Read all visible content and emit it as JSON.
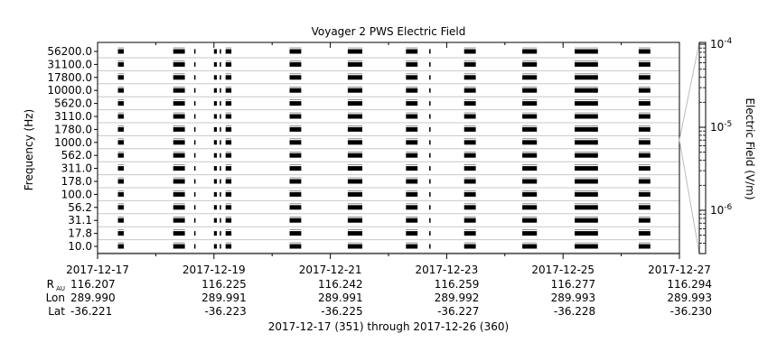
{
  "chart_data": {
    "type": "heatmap",
    "title": "Voyager 2 PWS Electric Field",
    "xlabel": "2017-12-17 (351) through 2017-12-26 (360)",
    "ylabel": "Frequency (Hz)",
    "colorbar_label": "Electric Field (V/m)",
    "colorbar_scale": "log",
    "colorbar_ticks": [
      {
        "base": "10",
        "exp": "-4"
      },
      {
        "base": "10",
        "exp": "-5"
      },
      {
        "base": "10",
        "exp": "-6"
      }
    ],
    "x_tick_labels": [
      "2017-12-17",
      "2017-12-19",
      "2017-12-21",
      "2017-12-23",
      "2017-12-25",
      "2017-12-27"
    ],
    "xlim": [
      "2017-12-17",
      "2017-12-27"
    ],
    "frequency_channels": [
      "10.0",
      "17.8",
      "31.1",
      "56.2",
      "100.0",
      "178.0",
      "311.0",
      "562.0",
      "1000.0",
      "1780.0",
      "3110.0",
      "5620.0",
      "10000.0",
      "17800.0",
      "31100.0",
      "56200.0"
    ],
    "data_coverage_intervals_day": [
      [
        0.35,
        0.45
      ],
      [
        1.3,
        1.5
      ],
      [
        1.66,
        1.68
      ],
      [
        2.0,
        2.05
      ],
      [
        2.1,
        2.12
      ],
      [
        2.2,
        2.3
      ],
      [
        3.3,
        3.5
      ],
      [
        4.3,
        4.55
      ],
      [
        5.3,
        5.5
      ],
      [
        5.7,
        5.72
      ],
      [
        6.3,
        6.5
      ],
      [
        7.3,
        7.55
      ],
      [
        8.2,
        8.6
      ],
      [
        8.55,
        8.57
      ],
      [
        9.3,
        9.5
      ]
    ],
    "ephemeris": {
      "row_labels": {
        "r_main": "R",
        "r_sub": "AU",
        "lon": "Lon",
        "lat": "Lat"
      },
      "R_AU": [
        "116.207",
        "116.225",
        "116.242",
        "116.259",
        "116.277",
        "116.294"
      ],
      "Lon": [
        "289.990",
        "289.991",
        "289.991",
        "289.992",
        "289.993",
        "289.993"
      ],
      "Lat": [
        "-36.221",
        "-36.223",
        "-36.225",
        "-36.227",
        "-36.228",
        "-36.230"
      ]
    }
  }
}
